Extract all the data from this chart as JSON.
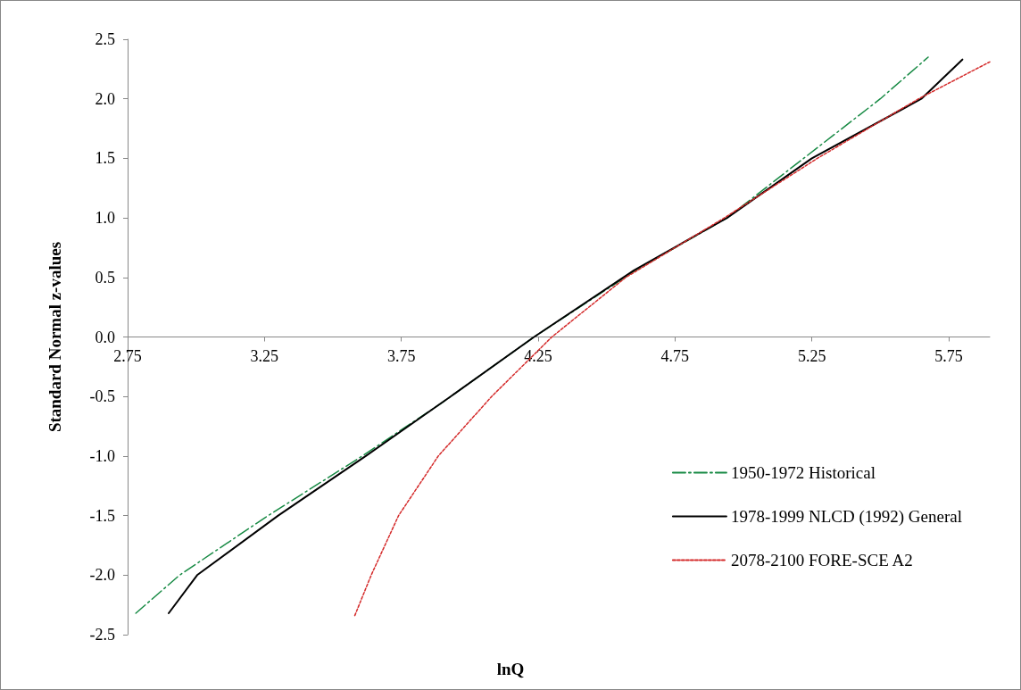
{
  "chart_data": {
    "type": "line",
    "xlabel": "lnQ",
    "ylabel": "Standard Normal z-values",
    "xlim": [
      2.75,
      5.9
    ],
    "xticks": [
      2.75,
      3.25,
      3.75,
      4.25,
      4.75,
      5.25,
      5.75
    ],
    "ylim": [
      -2.5,
      2.5
    ],
    "yticks": [
      -2.5,
      {
        "value": -2,
        "label": "-2.0"
      },
      -1.5,
      {
        "value": -1,
        "label": "-1.0"
      },
      -0.5,
      {
        "value": 0,
        "label": "0.0"
      },
      0.5,
      {
        "value": 1,
        "label": "1.0"
      },
      1.5,
      {
        "value": 2,
        "label": "2.0"
      },
      2.5
    ],
    "grid": false,
    "legend": "bottom right",
    "marker": "none",
    "series": [
      {
        "name": "1950-1972 Historical",
        "color": "#178a44",
        "line_style": "dashed",
        "x": [
          2.78,
          2.94,
          3.25,
          3.607,
          3.9,
          4.235,
          4.6,
          4.94,
          5.22,
          5.5,
          5.675
        ],
        "values": [
          -2.32,
          -2.0,
          -1.52,
          -1.0,
          -0.55,
          0.0,
          0.55,
          1.0,
          1.5,
          2.0,
          2.35
        ]
      },
      {
        "name": "1978-1999 NLCD (1992) General",
        "color": "#000000",
        "line_style": "solid",
        "x": [
          2.9,
          3.004,
          3.3,
          3.62,
          3.93,
          4.235,
          4.6,
          4.94,
          5.25,
          5.65,
          5.8
        ],
        "values": [
          -2.32,
          -2.0,
          -1.5,
          -1.0,
          -0.5,
          0.0,
          0.56,
          1.0,
          1.5,
          2.0,
          2.33
        ]
      },
      {
        "name": "2078-2100 FORE-SCE A2",
        "color": "#d42a2a",
        "line_style": "dotted",
        "x": [
          3.58,
          3.64,
          3.74,
          3.885,
          4.08,
          4.3,
          4.57,
          4.93,
          5.27,
          5.64,
          5.9
        ],
        "values": [
          -2.34,
          -2.0,
          -1.5,
          -1.0,
          -0.5,
          0.0,
          0.5,
          1.0,
          1.5,
          2.0,
          2.31
        ]
      }
    ]
  }
}
